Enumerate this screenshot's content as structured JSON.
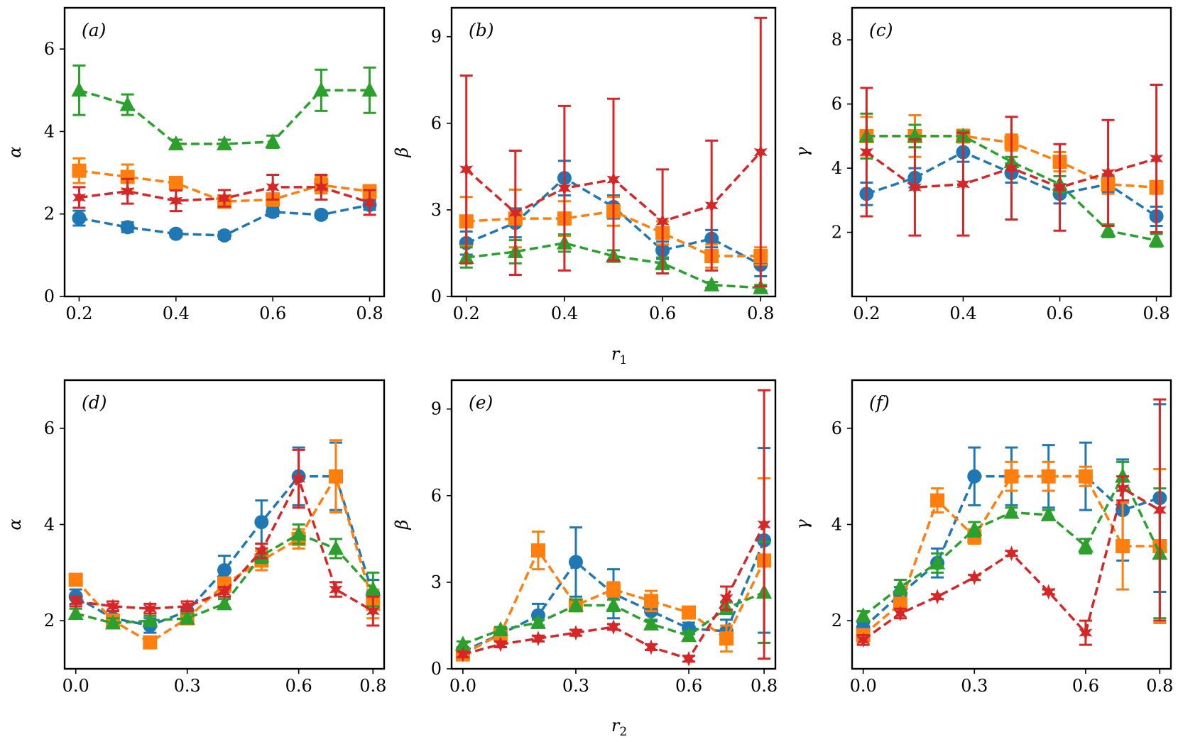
{
  "figure": {
    "colors": {
      "blue": "#1f77b4",
      "orange": "#ff7f0e",
      "green": "#2ca02c",
      "red": "#d62728"
    },
    "row_xlabels": [
      "r1",
      "r2"
    ]
  },
  "chart_data": [
    {
      "type": "line",
      "panel": "(a)",
      "ylabel": "α",
      "xlabel": "",
      "xlim": [
        0.17,
        0.83
      ],
      "ylim": [
        0,
        7
      ],
      "xticks": [
        0.2,
        0.4,
        0.6,
        0.8
      ],
      "xticklabels": [
        "0.2",
        "0.4",
        "0.6",
        "0.8"
      ],
      "yticks": [
        0,
        2,
        4,
        6
      ],
      "yticklabels": [
        "0",
        "2",
        "4",
        "6"
      ],
      "x": [
        0.2,
        0.3,
        0.4,
        0.5,
        0.6,
        0.7,
        0.8
      ],
      "series": [
        {
          "name": "blue",
          "marker": "circle",
          "values": [
            1.9,
            1.68,
            1.52,
            1.48,
            2.05,
            1.98,
            2.22
          ],
          "errors": [
            0.18,
            0.12,
            0.08,
            0.08,
            0.1,
            0.08,
            0.12
          ]
        },
        {
          "name": "orange",
          "marker": "square",
          "values": [
            3.05,
            2.9,
            2.75,
            2.3,
            2.35,
            2.7,
            2.55
          ],
          "errors": [
            0.3,
            0.3,
            0.15,
            0.15,
            0.15,
            0.2,
            0.15
          ]
        },
        {
          "name": "green",
          "marker": "triangle",
          "values": [
            5.0,
            4.65,
            3.7,
            3.7,
            3.75,
            5.0,
            5.0
          ],
          "errors": [
            0.6,
            0.25,
            0.1,
            0.1,
            0.15,
            0.5,
            0.55
          ]
        },
        {
          "name": "red",
          "marker": "star",
          "values": [
            2.4,
            2.55,
            2.32,
            2.38,
            2.65,
            2.65,
            2.28
          ],
          "errors": [
            0.25,
            0.3,
            0.25,
            0.2,
            0.3,
            0.3,
            0.3
          ]
        }
      ]
    },
    {
      "type": "line",
      "panel": "(b)",
      "ylabel": "β",
      "xlabel": "",
      "xlim": [
        0.17,
        0.83
      ],
      "ylim": [
        0,
        10
      ],
      "xticks": [
        0.2,
        0.4,
        0.6,
        0.8
      ],
      "xticklabels": [
        "0.2",
        "0.4",
        "0.6",
        "0.8"
      ],
      "yticks": [
        0,
        3,
        6,
        9
      ],
      "yticklabels": [
        "0",
        "3",
        "6",
        "9"
      ],
      "x": [
        0.2,
        0.3,
        0.4,
        0.5,
        0.6,
        0.7,
        0.8
      ],
      "series": [
        {
          "name": "blue",
          "marker": "circle",
          "values": [
            1.85,
            2.55,
            4.1,
            3.1,
            1.6,
            2.0,
            1.1
          ],
          "errors": [
            0.4,
            0.5,
            0.6,
            0.4,
            0.3,
            0.3,
            0.4
          ]
        },
        {
          "name": "orange",
          "marker": "square",
          "values": [
            2.6,
            2.7,
            2.7,
            2.95,
            2.2,
            1.4,
            1.4
          ],
          "errors": [
            0.85,
            1.0,
            0.6,
            0.5,
            0.4,
            0.4,
            0.3
          ]
        },
        {
          "name": "green",
          "marker": "triangle",
          "values": [
            1.35,
            1.55,
            1.85,
            1.4,
            1.15,
            0.4,
            0.3
          ],
          "errors": [
            0.35,
            0.4,
            0.3,
            0.2,
            0.2,
            0.1,
            0.1
          ]
        },
        {
          "name": "red",
          "marker": "star",
          "values": [
            4.4,
            2.9,
            3.75,
            4.05,
            2.6,
            3.15,
            5.0
          ],
          "errors": [
            3.25,
            2.15,
            2.85,
            2.8,
            1.8,
            2.25,
            4.65
          ]
        }
      ]
    },
    {
      "type": "line",
      "panel": "(c)",
      "ylabel": "γ",
      "xlabel": "",
      "xlim": [
        0.17,
        0.83
      ],
      "ylim": [
        0,
        9
      ],
      "xticks": [
        0.2,
        0.4,
        0.6,
        0.8
      ],
      "xticklabels": [
        "0.2",
        "0.4",
        "0.6",
        "0.8"
      ],
      "yticks": [
        2,
        4,
        6,
        8
      ],
      "yticklabels": [
        "2",
        "4",
        "6",
        "8"
      ],
      "x": [
        0.2,
        0.3,
        0.4,
        0.5,
        0.6,
        0.7,
        0.8
      ],
      "series": [
        {
          "name": "blue",
          "marker": "circle",
          "values": [
            3.2,
            3.7,
            4.5,
            3.85,
            3.2,
            3.5,
            2.5
          ],
          "errors": [
            0.35,
            0.3,
            0.3,
            0.3,
            0.3,
            0.25,
            0.3
          ]
        },
        {
          "name": "orange",
          "marker": "square",
          "values": [
            5.0,
            5.0,
            5.0,
            4.8,
            4.2,
            3.5,
            3.4
          ],
          "errors": [
            0.6,
            0.65,
            0.2,
            0.25,
            0.3,
            0.3,
            0.2
          ]
        },
        {
          "name": "green",
          "marker": "triangle",
          "values": [
            5.0,
            5.0,
            5.0,
            4.2,
            3.5,
            2.05,
            1.75
          ],
          "errors": [
            0.7,
            0.35,
            0.15,
            0.15,
            0.25,
            0.2,
            0.2
          ]
        },
        {
          "name": "red",
          "marker": "star",
          "values": [
            4.5,
            3.4,
            3.5,
            4.0,
            3.4,
            3.85,
            4.3
          ],
          "errors": [
            2.0,
            1.5,
            1.6,
            1.6,
            1.35,
            1.65,
            2.3
          ]
        }
      ]
    },
    {
      "type": "line",
      "panel": "(d)",
      "ylabel": "α",
      "xlabel": "",
      "xlim": [
        -0.03,
        0.83
      ],
      "ylim": [
        1,
        7
      ],
      "xticks": [
        0.0,
        0.3,
        0.6,
        0.8
      ],
      "xticklabels": [
        "0.0",
        "0.3",
        "0.6",
        "0.8"
      ],
      "yticks": [
        2,
        4,
        6
      ],
      "yticklabels": [
        "2",
        "4",
        "6"
      ],
      "x": [
        0.0,
        0.1,
        0.2,
        0.3,
        0.4,
        0.5,
        0.6,
        0.7,
        0.8
      ],
      "series": [
        {
          "name": "blue",
          "marker": "circle",
          "values": [
            2.5,
            2.05,
            1.9,
            2.2,
            3.05,
            4.05,
            5.0,
            5.0,
            2.55
          ],
          "errors": [
            0.15,
            0.15,
            0.15,
            0.2,
            0.3,
            0.45,
            0.6,
            0.7,
            0.3
          ]
        },
        {
          "name": "orange",
          "marker": "square",
          "values": [
            2.85,
            2.0,
            1.55,
            2.05,
            2.75,
            3.25,
            3.7,
            5.0,
            2.35
          ],
          "errors": [
            0.1,
            0.1,
            0.1,
            0.1,
            0.15,
            0.2,
            0.2,
            0.75,
            0.3
          ]
        },
        {
          "name": "green",
          "marker": "triangle",
          "values": [
            2.15,
            1.95,
            2.0,
            2.05,
            2.35,
            3.35,
            3.8,
            3.5,
            2.65
          ],
          "errors": [
            0.1,
            0.1,
            0.1,
            0.1,
            0.1,
            0.15,
            0.2,
            0.2,
            0.35
          ]
        },
        {
          "name": "red",
          "marker": "star",
          "values": [
            2.4,
            2.3,
            2.25,
            2.3,
            2.6,
            3.45,
            4.95,
            2.65,
            2.2
          ],
          "errors": [
            0.1,
            0.1,
            0.1,
            0.1,
            0.1,
            0.15,
            0.6,
            0.15,
            0.3
          ]
        }
      ]
    },
    {
      "type": "line",
      "panel": "(e)",
      "ylabel": "β",
      "xlabel": "",
      "xlim": [
        -0.03,
        0.83
      ],
      "ylim": [
        0,
        10
      ],
      "xticks": [
        0.0,
        0.3,
        0.6,
        0.8
      ],
      "xticklabels": [
        "0.0",
        "0.3",
        "0.6",
        "0.8"
      ],
      "yticks": [
        0,
        3,
        6,
        9
      ],
      "yticklabels": [
        "0",
        "3",
        "6",
        "9"
      ],
      "x": [
        0.0,
        0.1,
        0.2,
        0.3,
        0.4,
        0.5,
        0.6,
        0.7,
        0.8
      ],
      "series": [
        {
          "name": "blue",
          "marker": "circle",
          "values": [
            0.6,
            1.2,
            1.85,
            3.7,
            2.6,
            2.0,
            1.4,
            1.3,
            4.45
          ],
          "errors": [
            0.1,
            0.2,
            0.4,
            1.2,
            0.85,
            0.35,
            0.2,
            0.4,
            3.2
          ]
        },
        {
          "name": "orange",
          "marker": "square",
          "values": [
            0.5,
            1.2,
            4.1,
            2.2,
            2.75,
            2.35,
            1.95,
            1.05,
            3.75
          ],
          "errors": [
            0.1,
            0.1,
            0.65,
            0.2,
            0.25,
            0.35,
            0.2,
            0.45,
            2.85
          ]
        },
        {
          "name": "green",
          "marker": "triangle",
          "values": [
            0.85,
            1.35,
            1.6,
            2.2,
            2.2,
            1.55,
            1.15,
            2.1,
            2.65
          ],
          "errors": [
            0.1,
            0.1,
            0.1,
            0.2,
            0.2,
            0.15,
            0.15,
            0.2,
            1.75
          ]
        },
        {
          "name": "red",
          "marker": "star",
          "values": [
            0.5,
            0.85,
            1.05,
            1.25,
            1.45,
            0.75,
            0.35,
            2.45,
            5.0
          ],
          "errors": [
            0.1,
            0.1,
            0.1,
            0.1,
            0.1,
            0.1,
            0.1,
            0.4,
            4.65
          ]
        }
      ]
    },
    {
      "type": "line",
      "panel": "(f)",
      "ylabel": "γ",
      "xlabel": "",
      "xlim": [
        -0.03,
        0.83
      ],
      "ylim": [
        1,
        7
      ],
      "xticks": [
        0.0,
        0.3,
        0.6,
        0.8
      ],
      "xticklabels": [
        "0.0",
        "0.3",
        "0.6",
        "0.8"
      ],
      "yticks": [
        2,
        4,
        6
      ],
      "yticklabels": [
        "2",
        "4",
        "6"
      ],
      "x": [
        0.0,
        0.1,
        0.2,
        0.3,
        0.4,
        0.5,
        0.6,
        0.7,
        0.8
      ],
      "series": [
        {
          "name": "blue",
          "marker": "circle",
          "values": [
            1.85,
            2.55,
            3.2,
            5.0,
            5.0,
            5.0,
            5.0,
            4.3,
            4.55
          ],
          "errors": [
            0.1,
            0.15,
            0.3,
            0.6,
            0.6,
            0.65,
            0.7,
            1.05,
            1.95
          ]
        },
        {
          "name": "orange",
          "marker": "square",
          "values": [
            1.7,
            2.35,
            4.5,
            3.75,
            5.0,
            5.0,
            5.0,
            3.55,
            3.55
          ],
          "errors": [
            0.1,
            0.1,
            0.25,
            0.15,
            0.3,
            0.3,
            0.2,
            0.9,
            1.6
          ]
        },
        {
          "name": "green",
          "marker": "triangle",
          "values": [
            2.1,
            2.7,
            3.2,
            3.9,
            4.25,
            4.2,
            3.55,
            5.0,
            3.4
          ],
          "errors": [
            0.1,
            0.15,
            0.2,
            0.15,
            0.1,
            0.1,
            0.15,
            0.3,
            1.35
          ]
        },
        {
          "name": "red",
          "marker": "star",
          "values": [
            1.6,
            2.15,
            2.5,
            2.9,
            3.4,
            2.6,
            1.75,
            4.75,
            4.3
          ],
          "errors": [
            0.1,
            0.1,
            0.05,
            0.05,
            0.05,
            0.05,
            0.25,
            0.25,
            2.3
          ]
        }
      ]
    }
  ]
}
